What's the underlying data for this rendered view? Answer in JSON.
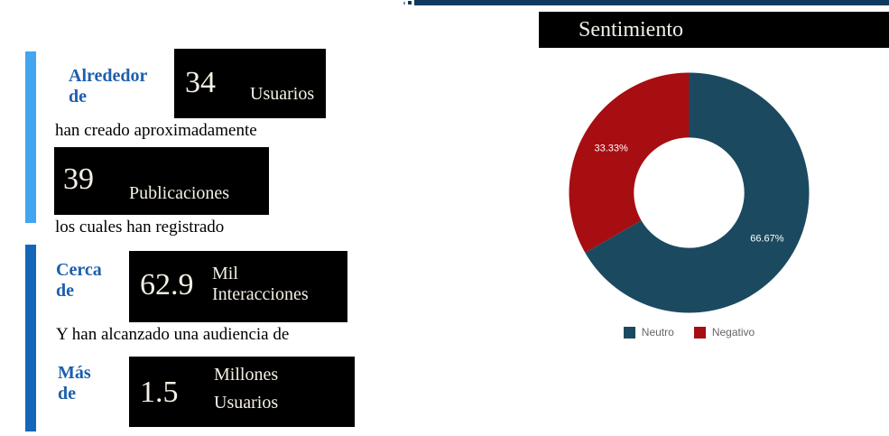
{
  "colors": {
    "bar_light": "#42a5f0",
    "bar_dark": "#1467b8",
    "label_blue": "#1e5fad",
    "box_bg": "#000000",
    "box_text": "#f5f0e4",
    "text_black": "#000000",
    "top_bar": "#0d3a5e",
    "title_bg": "#000000",
    "title_text": "#f2efe9",
    "legend_text": "#666666"
  },
  "stats": {
    "qualifier_1": "Alrededor\nde",
    "value_1": "34",
    "unit_1": "Usuarios",
    "connector_1": "han creado aproximadamente",
    "value_2": "39",
    "unit_2": "Publicaciones",
    "connector_2": "los cuales han registrado",
    "qualifier_2": "Cerca\nde",
    "value_3": "62.9",
    "unit_3": "Mil\nInteracciones",
    "connector_3": "Y han alcanzado una audiencia de",
    "qualifier_3": "Más\nde",
    "value_4": "1.5",
    "unit_4": "Millones\nUsuarios"
  },
  "chart_data": {
    "type": "pie",
    "subtype": "donut",
    "title": "Sentimiento",
    "inner_radius_ratio": 0.46,
    "start_angle": "top",
    "direction": "clockwise",
    "legend_position": "bottom",
    "slices": [
      {
        "label": "Neutro",
        "value": 66.67,
        "display": "66.67%",
        "color": "#1b4a60"
      },
      {
        "label": "Negativo",
        "value": 33.33,
        "display": "33.33%",
        "color": "#a60e12"
      }
    ]
  }
}
